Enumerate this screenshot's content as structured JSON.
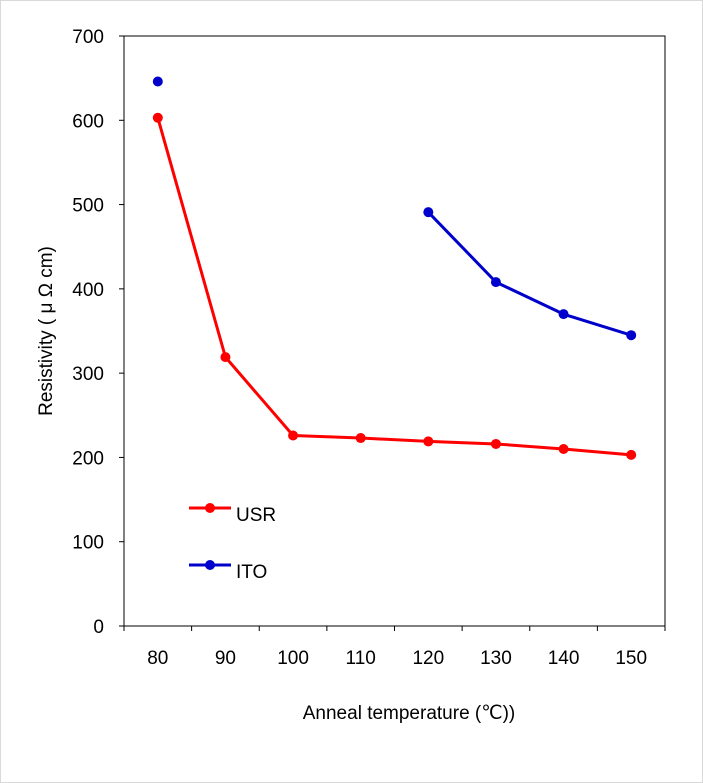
{
  "chart_data": {
    "type": "line",
    "title": "",
    "xlabel": "Anneal temperature (℃))",
    "ylabel": "Resistivity ( μ Ω cm)",
    "categories": [
      "80",
      "90",
      "100",
      "110",
      "120",
      "130",
      "140",
      "150"
    ],
    "ylim": [
      0,
      700
    ],
    "yticks": [
      0,
      100,
      200,
      300,
      400,
      500,
      600,
      700
    ],
    "grid": false,
    "legend_position": "bottom-left inside plot",
    "series": [
      {
        "name": "USR",
        "color": "#ff0000",
        "values": [
          603,
          319,
          226,
          223,
          219,
          216,
          210,
          203
        ]
      },
      {
        "name": "ITO",
        "color": "#0000cc",
        "values": [
          646,
          null,
          null,
          null,
          491,
          408,
          370,
          345
        ]
      }
    ]
  }
}
